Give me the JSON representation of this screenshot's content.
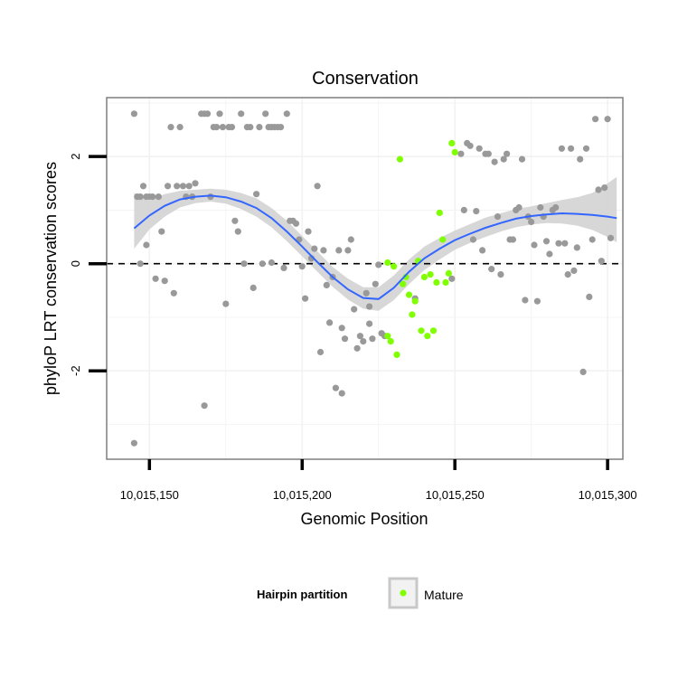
{
  "chart_data": {
    "type": "scatter",
    "title": "Conservation",
    "xlabel": "Genomic Position",
    "ylabel": "phyloP LRT conservation scores",
    "xlim": [
      10015136,
      10015305
    ],
    "ylim": [
      -3.65,
      3.1
    ],
    "x_ticks": [
      {
        "value": 10015150,
        "label": "10,015,150"
      },
      {
        "value": 10015200,
        "label": "10,015,200"
      },
      {
        "value": 10015250,
        "label": "10,015,250"
      },
      {
        "value": 10015300,
        "label": "10,015,300"
      }
    ],
    "y_ticks": [
      {
        "value": -2,
        "label": "-2"
      },
      {
        "value": 0,
        "label": "0"
      },
      {
        "value": 2,
        "label": "2"
      }
    ],
    "reference_line": {
      "y": 0,
      "style": "dashed"
    },
    "colors": {
      "other": "#999999",
      "mature": "#7FFF00",
      "smooth": "#3366FF",
      "ribbon": "#D3D3D3",
      "panel_border": "#7F7F7F",
      "grid": "#F2F2F2"
    },
    "legend": {
      "title": "Hairpin partition",
      "entries": [
        {
          "label": "Mature",
          "color": "#7FFF00"
        }
      ]
    },
    "series": [
      {
        "name": "Other",
        "points": [
          [
            10015145,
            2.8
          ],
          [
            10015145,
            -3.35
          ],
          [
            10015146,
            1.25
          ],
          [
            10015147,
            1.25
          ],
          [
            10015147,
            0.0
          ],
          [
            10015148,
            1.45
          ],
          [
            10015149,
            0.35
          ],
          [
            10015149,
            1.25
          ],
          [
            10015150,
            1.25
          ],
          [
            10015151,
            1.25
          ],
          [
            10015152,
            -0.28
          ],
          [
            10015153,
            1.25
          ],
          [
            10015154,
            0.6
          ],
          [
            10015155,
            -0.32
          ],
          [
            10015156,
            1.45
          ],
          [
            10015157,
            2.55
          ],
          [
            10015158,
            -0.55
          ],
          [
            10015159,
            1.45
          ],
          [
            10015160,
            2.55
          ],
          [
            10015161,
            1.45
          ],
          [
            10015162,
            1.25
          ],
          [
            10015163,
            1.45
          ],
          [
            10015164,
            1.25
          ],
          [
            10015165,
            1.5
          ],
          [
            10015167,
            2.8
          ],
          [
            10015168,
            -2.65
          ],
          [
            10015168,
            2.8
          ],
          [
            10015169,
            2.8
          ],
          [
            10015170,
            1.25
          ],
          [
            10015171,
            2.55
          ],
          [
            10015172,
            2.55
          ],
          [
            10015173,
            2.8
          ],
          [
            10015174,
            2.55
          ],
          [
            10015175,
            -0.75
          ],
          [
            10015176,
            2.55
          ],
          [
            10015177,
            2.55
          ],
          [
            10015178,
            0.8
          ],
          [
            10015179,
            0.6
          ],
          [
            10015180,
            2.8
          ],
          [
            10015181,
            0.0
          ],
          [
            10015182,
            2.55
          ],
          [
            10015183,
            2.55
          ],
          [
            10015184,
            -0.45
          ],
          [
            10015185,
            1.3
          ],
          [
            10015186,
            2.55
          ],
          [
            10015187,
            0.0
          ],
          [
            10015188,
            2.8
          ],
          [
            10015189,
            2.55
          ],
          [
            10015190,
            0.02
          ],
          [
            10015190,
            2.55
          ],
          [
            10015191,
            2.55
          ],
          [
            10015192,
            2.55
          ],
          [
            10015193,
            2.55
          ],
          [
            10015194,
            -0.08
          ],
          [
            10015195,
            2.8
          ],
          [
            10015196,
            0.8
          ],
          [
            10015197,
            0.8
          ],
          [
            10015198,
            0.75
          ],
          [
            10015199,
            0.45
          ],
          [
            10015200,
            -0.05
          ],
          [
            10015201,
            -0.65
          ],
          [
            10015202,
            0.6
          ],
          [
            10015203,
            0.1
          ],
          [
            10015204,
            0.28
          ],
          [
            10015205,
            1.45
          ],
          [
            10015206,
            -1.65
          ],
          [
            10015207,
            0.25
          ],
          [
            10015208,
            -0.4
          ],
          [
            10015209,
            -1.1
          ],
          [
            10015210,
            -0.25
          ],
          [
            10015211,
            -2.32
          ],
          [
            10015212,
            0.25
          ],
          [
            10015213,
            -1.2
          ],
          [
            10015213,
            -2.42
          ],
          [
            10015214,
            -1.4
          ],
          [
            10015215,
            0.25
          ],
          [
            10015216,
            0.45
          ],
          [
            10015217,
            -0.85
          ],
          [
            10015218,
            -1.58
          ],
          [
            10015219,
            -1.35
          ],
          [
            10015220,
            -1.45
          ],
          [
            10015221,
            -0.55
          ],
          [
            10015222,
            -0.8
          ],
          [
            10015222,
            -1.12
          ],
          [
            10015223,
            -1.4
          ],
          [
            10015224,
            -0.38
          ],
          [
            10015225,
            -0.02
          ],
          [
            10015226,
            -1.3
          ],
          [
            10015227,
            -1.35
          ],
          [
            10015237,
            -0.65
          ],
          [
            10015249,
            -0.28
          ],
          [
            10015252,
            2.05
          ],
          [
            10015253,
            1.0
          ],
          [
            10015254,
            2.25
          ],
          [
            10015255,
            2.2
          ],
          [
            10015256,
            0.45
          ],
          [
            10015257,
            0.98
          ],
          [
            10015258,
            2.15
          ],
          [
            10015259,
            0.25
          ],
          [
            10015260,
            2.05
          ],
          [
            10015261,
            2.05
          ],
          [
            10015262,
            -0.1
          ],
          [
            10015263,
            1.9
          ],
          [
            10015264,
            0.88
          ],
          [
            10015265,
            -0.2
          ],
          [
            10015266,
            1.95
          ],
          [
            10015267,
            2.05
          ],
          [
            10015268,
            0.45
          ],
          [
            10015269,
            0.45
          ],
          [
            10015270,
            1.0
          ],
          [
            10015271,
            1.05
          ],
          [
            10015272,
            1.95
          ],
          [
            10015273,
            -0.68
          ],
          [
            10015274,
            0.88
          ],
          [
            10015275,
            0.78
          ],
          [
            10015276,
            0.35
          ],
          [
            10015277,
            -0.7
          ],
          [
            10015278,
            1.05
          ],
          [
            10015279,
            0.88
          ],
          [
            10015280,
            0.42
          ],
          [
            10015281,
            0.18
          ],
          [
            10015282,
            1.0
          ],
          [
            10015283,
            1.05
          ],
          [
            10015284,
            0.38
          ],
          [
            10015285,
            2.15
          ],
          [
            10015286,
            0.38
          ],
          [
            10015287,
            -0.2
          ],
          [
            10015288,
            2.15
          ],
          [
            10015289,
            -0.13
          ],
          [
            10015290,
            0.3
          ],
          [
            10015291,
            1.95
          ],
          [
            10015292,
            -2.02
          ],
          [
            10015293,
            2.15
          ],
          [
            10015294,
            -0.62
          ],
          [
            10015295,
            0.45
          ],
          [
            10015296,
            2.7
          ],
          [
            10015297,
            1.38
          ],
          [
            10015298,
            0.05
          ],
          [
            10015299,
            1.42
          ],
          [
            10015300,
            2.7
          ],
          [
            10015301,
            0.48
          ]
        ]
      },
      {
        "name": "Mature",
        "points": [
          [
            10015228,
            0.02
          ],
          [
            10015228,
            -1.35
          ],
          [
            10015229,
            -1.45
          ],
          [
            10015230,
            -0.05
          ],
          [
            10015231,
            -1.7
          ],
          [
            10015232,
            1.95
          ],
          [
            10015233,
            -0.38
          ],
          [
            10015234,
            -0.25
          ],
          [
            10015235,
            -0.58
          ],
          [
            10015236,
            -0.95
          ],
          [
            10015237,
            -0.7
          ],
          [
            10015238,
            0.05
          ],
          [
            10015239,
            -1.25
          ],
          [
            10015240,
            -0.25
          ],
          [
            10015241,
            -1.35
          ],
          [
            10015242,
            -0.2
          ],
          [
            10015243,
            -1.25
          ],
          [
            10015244,
            -0.35
          ],
          [
            10015245,
            0.95
          ],
          [
            10015246,
            0.45
          ],
          [
            10015247,
            -0.35
          ],
          [
            10015248,
            -0.18
          ],
          [
            10015249,
            2.25
          ],
          [
            10015250,
            2.08
          ]
        ]
      }
    ],
    "smooth_curve": {
      "x": [
        10015145,
        10015150,
        10015155,
        10015160,
        10015165,
        10015170,
        10015175,
        10015180,
        10015185,
        10015190,
        10015195,
        10015200,
        10015205,
        10015210,
        10015215,
        10015220,
        10015225,
        10015230,
        10015235,
        10015240,
        10015245,
        10015250,
        10015255,
        10015260,
        10015265,
        10015270,
        10015275,
        10015280,
        10015285,
        10015290,
        10015295,
        10015300,
        10015303
      ],
      "y": [
        0.66,
        0.9,
        1.08,
        1.2,
        1.25,
        1.27,
        1.24,
        1.16,
        1.04,
        0.85,
        0.6,
        0.32,
        0.03,
        -0.25,
        -0.48,
        -0.64,
        -0.66,
        -0.45,
        -0.15,
        0.1,
        0.28,
        0.44,
        0.56,
        0.67,
        0.76,
        0.84,
        0.89,
        0.92,
        0.94,
        0.93,
        0.91,
        0.88,
        0.85
      ],
      "lower": [
        0.28,
        0.64,
        0.88,
        1.05,
        1.13,
        1.16,
        1.12,
        1.02,
        0.88,
        0.68,
        0.42,
        0.14,
        -0.15,
        -0.43,
        -0.67,
        -0.84,
        -0.88,
        -0.68,
        -0.38,
        -0.12,
        0.08,
        0.26,
        0.39,
        0.5,
        0.6,
        0.68,
        0.73,
        0.76,
        0.75,
        0.71,
        0.63,
        0.5,
        0.4
      ],
      "upper": [
        1.32,
        1.18,
        1.3,
        1.36,
        1.38,
        1.4,
        1.38,
        1.32,
        1.22,
        1.04,
        0.8,
        0.52,
        0.23,
        -0.06,
        -0.28,
        -0.44,
        -0.44,
        -0.22,
        0.08,
        0.32,
        0.48,
        0.62,
        0.74,
        0.86,
        0.94,
        1.02,
        1.07,
        1.13,
        1.19,
        1.24,
        1.32,
        1.5,
        1.62
      ]
    }
  }
}
